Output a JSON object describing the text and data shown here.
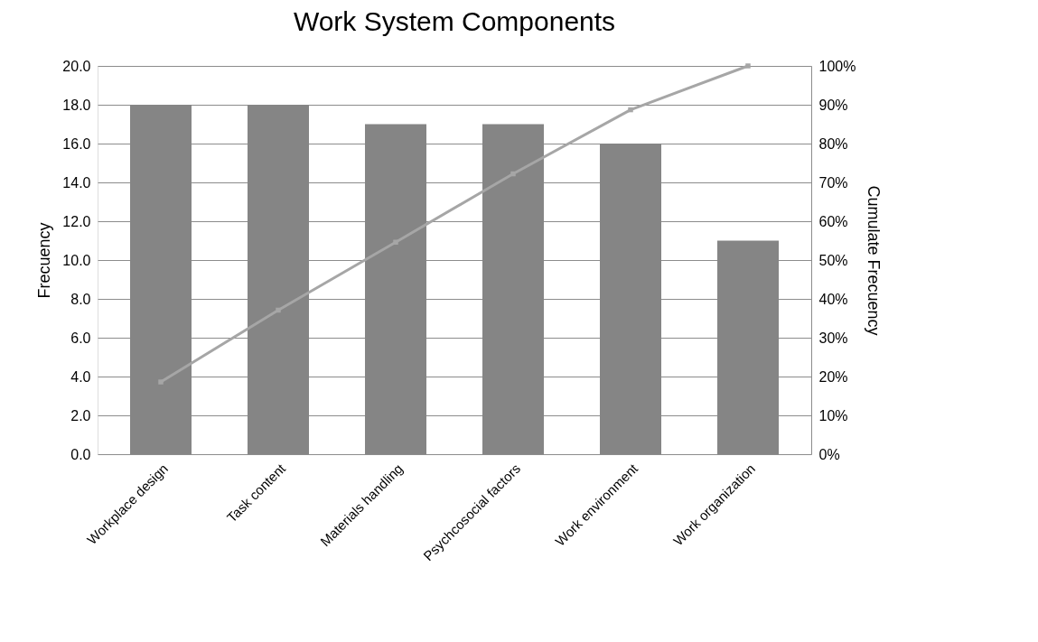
{
  "chart_data": {
    "type": "bar",
    "title": "Work System Components",
    "ylabel": "Frecuency",
    "y2label": "Cumulate Frecuency",
    "categories": [
      "Workplace design",
      "Task content",
      "Materials handling",
      "Psychcosocial factors",
      "Work environment",
      "Work organization"
    ],
    "series": [
      {
        "color": "#858585",
        "values": [
          18,
          18,
          17,
          17,
          16,
          11
        ]
      },
      {
        "type": "line",
        "axis": "y2",
        "color": "#a6a6a6",
        "marker": "square",
        "line_style": "solid",
        "values": [
          18.6,
          37.1,
          54.6,
          72.2,
          88.7,
          100
        ]
      }
    ],
    "ylim": [
      0,
      20
    ],
    "yticks": [
      {
        "value": 0,
        "label": "0.0"
      },
      {
        "value": 2,
        "label": "2.0"
      },
      {
        "value": 4,
        "label": "4.0"
      },
      {
        "value": 6,
        "label": "6.0"
      },
      {
        "value": 8,
        "label": "8.0"
      },
      {
        "value": 10,
        "label": "10.0"
      },
      {
        "value": 12,
        "label": "12.0"
      },
      {
        "value": 14,
        "label": "14.0"
      },
      {
        "value": 16,
        "label": "16.0"
      },
      {
        "value": 18,
        "label": "18.0"
      },
      {
        "value": 20,
        "label": "20.0"
      }
    ],
    "y2lim": [
      0,
      100
    ],
    "y2ticks": [
      {
        "value": 0,
        "label": "0%"
      },
      {
        "value": 10,
        "label": "10%"
      },
      {
        "value": 20,
        "label": "20%"
      },
      {
        "value": 30,
        "label": "30%"
      },
      {
        "value": 40,
        "label": "40%"
      },
      {
        "value": 50,
        "label": "50%"
      },
      {
        "value": 60,
        "label": "60%"
      },
      {
        "value": 70,
        "label": "70%"
      },
      {
        "value": 80,
        "label": "80%"
      },
      {
        "value": 90,
        "label": "90%"
      },
      {
        "value": 100,
        "label": "100%"
      }
    ],
    "grid": "y"
  }
}
